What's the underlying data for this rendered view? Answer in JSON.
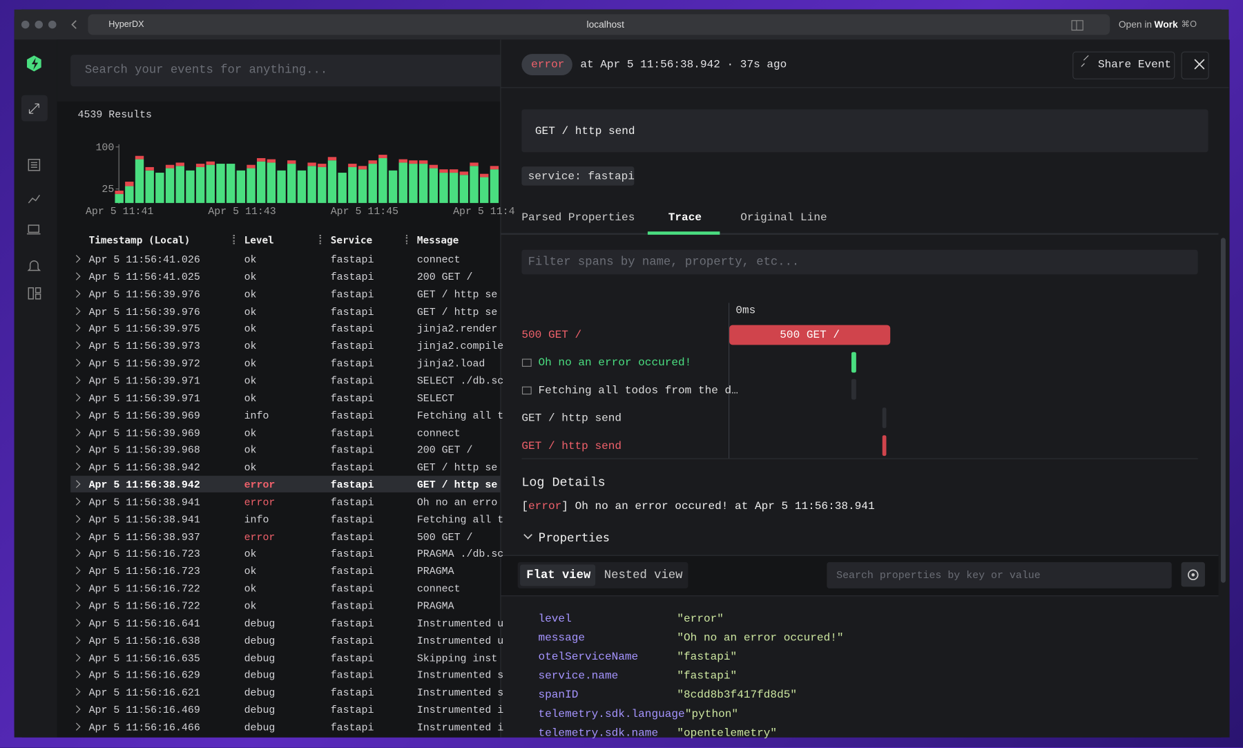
{
  "browser": {
    "tab": "HyperDX",
    "url": "localhost",
    "open_in": "Open in",
    "profile": "Work",
    "shortcut": "⌘O"
  },
  "search": {
    "placeholder": "Search your events for anything..."
  },
  "results": "4539 Results",
  "histogram": {
    "type": "bar",
    "stacked": true,
    "ylim": [
      0,
      100
    ],
    "yticks": [
      100,
      25
    ],
    "xtick_labels": [
      "Apr 5 11:41",
      "Apr 5 11:43",
      "Apr 5 11:45",
      "Apr 5 11:4"
    ],
    "series": [
      {
        "color": "#4ade80",
        "values": [
          16,
          30,
          78,
          58,
          54,
          62,
          66,
          58,
          64,
          68,
          70,
          70,
          58,
          62,
          74,
          72,
          58,
          70,
          58,
          66,
          64,
          76,
          54,
          64,
          60,
          70,
          80,
          58,
          72,
          70,
          70,
          62,
          54,
          54,
          50,
          66,
          46,
          60
        ]
      },
      {
        "color": "#e5484d",
        "values": [
          6,
          8,
          6,
          6,
          0,
          6,
          6,
          0,
          6,
          6,
          0,
          0,
          0,
          6,
          6,
          6,
          0,
          6,
          0,
          6,
          6,
          6,
          0,
          6,
          6,
          6,
          6,
          0,
          6,
          6,
          6,
          6,
          6,
          6,
          6,
          6,
          6,
          6
        ]
      }
    ]
  },
  "table": {
    "columns": [
      "Timestamp (Local)",
      "Level",
      "Service",
      "Message"
    ],
    "selected": 13,
    "rows": [
      [
        "Apr 5 11:56:41.026",
        "ok",
        "fastapi",
        "connect"
      ],
      [
        "Apr 5 11:56:41.025",
        "ok",
        "fastapi",
        "200 GET /"
      ],
      [
        "Apr 5 11:56:39.976",
        "ok",
        "fastapi",
        "GET / http se"
      ],
      [
        "Apr 5 11:56:39.976",
        "ok",
        "fastapi",
        "GET / http se"
      ],
      [
        "Apr 5 11:56:39.975",
        "ok",
        "fastapi",
        "jinja2.render"
      ],
      [
        "Apr 5 11:56:39.973",
        "ok",
        "fastapi",
        "jinja2.compile"
      ],
      [
        "Apr 5 11:56:39.972",
        "ok",
        "fastapi",
        "jinja2.load"
      ],
      [
        "Apr 5 11:56:39.971",
        "ok",
        "fastapi",
        "SELECT ./db.sc"
      ],
      [
        "Apr 5 11:56:39.971",
        "ok",
        "fastapi",
        "SELECT"
      ],
      [
        "Apr 5 11:56:39.969",
        "info",
        "fastapi",
        "Fetching all t"
      ],
      [
        "Apr 5 11:56:39.969",
        "ok",
        "fastapi",
        "connect"
      ],
      [
        "Apr 5 11:56:39.968",
        "ok",
        "fastapi",
        "200 GET /"
      ],
      [
        "Apr 5 11:56:38.942",
        "ok",
        "fastapi",
        "GET / http se"
      ],
      [
        "Apr 5 11:56:38.942",
        "error",
        "fastapi",
        "GET / http se"
      ],
      [
        "Apr 5 11:56:38.941",
        "error",
        "fastapi",
        "Oh no an erro"
      ],
      [
        "Apr 5 11:56:38.941",
        "info",
        "fastapi",
        "Fetching all t"
      ],
      [
        "Apr 5 11:56:38.937",
        "error",
        "fastapi",
        "500 GET /"
      ],
      [
        "Apr 5 11:56:16.723",
        "ok",
        "fastapi",
        "PRAGMA ./db.sc"
      ],
      [
        "Apr 5 11:56:16.723",
        "ok",
        "fastapi",
        "PRAGMA"
      ],
      [
        "Apr 5 11:56:16.722",
        "ok",
        "fastapi",
        "connect"
      ],
      [
        "Apr 5 11:56:16.722",
        "ok",
        "fastapi",
        "PRAGMA"
      ],
      [
        "Apr 5 11:56:16.641",
        "debug",
        "fastapi",
        "Instrumented u"
      ],
      [
        "Apr 5 11:56:16.638",
        "debug",
        "fastapi",
        "Instrumented u"
      ],
      [
        "Apr 5 11:56:16.635",
        "debug",
        "fastapi",
        "Skipping inst"
      ],
      [
        "Apr 5 11:56:16.629",
        "debug",
        "fastapi",
        "Instrumented s"
      ],
      [
        "Apr 5 11:56:16.621",
        "debug",
        "fastapi",
        "Instrumented s"
      ],
      [
        "Apr 5 11:56:16.469",
        "debug",
        "fastapi",
        "Instrumented i"
      ],
      [
        "Apr 5 11:56:16.466",
        "debug",
        "fastapi",
        "Instrumented i"
      ]
    ]
  },
  "detail": {
    "level": "error",
    "timestamp": "at Apr 5 11:56:38.942 · 37s ago",
    "share": "Share Event",
    "title": "GET / http send",
    "service": "service: fastapi",
    "tabs": [
      "Parsed Properties",
      "Trace",
      "Original Line"
    ],
    "active_tab": 1,
    "filter_placeholder": "Filter spans by name, property, etc...",
    "trace": {
      "axis": "0ms",
      "bar_label": "500 GET /",
      "spans": [
        "500 GET /",
        "Oh no an error occured!",
        "Fetching all todos from the d…",
        "GET / http send",
        "GET / http send"
      ]
    },
    "log_details": {
      "heading": "Log Details",
      "level": "error",
      "message": "Oh no an error occured! at Apr 5 11:56:38.941"
    },
    "properties": {
      "heading": "Properties",
      "views": [
        "Flat view",
        "Nested view"
      ],
      "search_placeholder": "Search properties by key or value",
      "items": [
        [
          "level",
          "\"error\""
        ],
        [
          "message",
          "\"Oh no an error occured!\""
        ],
        [
          "otelServiceName",
          "\"fastapi\""
        ],
        [
          "service.name",
          "\"fastapi\""
        ],
        [
          "spanID",
          "\"8cdd8b3f417fd8d5\""
        ],
        [
          "telemetry.sdk.language",
          "\"python\""
        ],
        [
          "telemetry.sdk.name",
          "\"opentelemetry\""
        ]
      ]
    }
  }
}
